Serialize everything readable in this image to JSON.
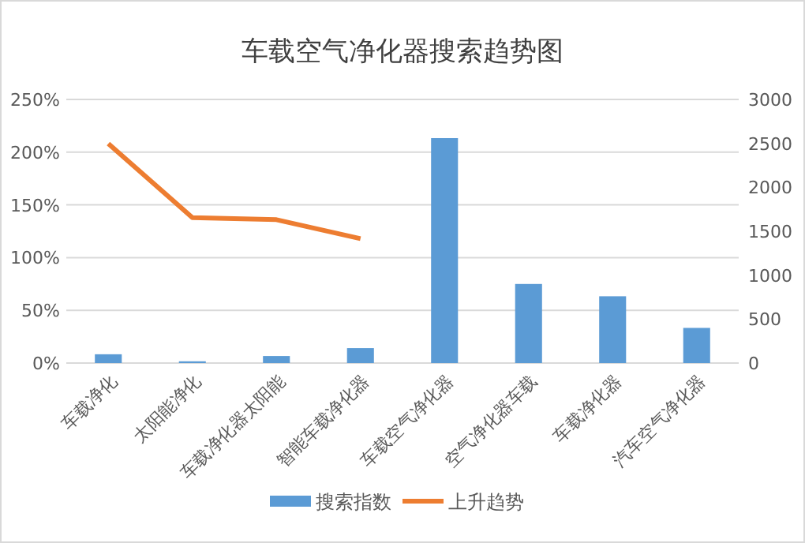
{
  "chart_data": {
    "type": "bar",
    "title": "车载空气净化器搜索趋势图",
    "categories": [
      "车载净化",
      "太阳能净化",
      "车载净化器太阳能",
      "智能车载净化器",
      "车载空气净化器",
      "空气净化器车载",
      "车载净化器",
      "汽车空气净化器"
    ],
    "series": [
      {
        "name": "搜索指数",
        "axis": "y2",
        "color": "#5b9bd5",
        "values": [
          100,
          20,
          80,
          170,
          2560,
          900,
          760,
          400
        ]
      },
      {
        "name": "上升趋势",
        "type": "line",
        "color": "#ed7d31",
        "values": [
          208,
          138,
          136,
          118,
          null,
          null,
          null,
          null
        ]
      }
    ],
    "ylim": [
      0,
      250
    ],
    "yticks": [
      {
        "value": 0,
        "label": "0%"
      },
      {
        "value": 50,
        "label": "50%"
      },
      {
        "value": 100,
        "label": "100%"
      },
      {
        "value": 150,
        "label": "150%"
      },
      {
        "value": 200,
        "label": "200%"
      },
      {
        "value": 250,
        "label": "250%"
      }
    ],
    "y2lim": [
      0,
      3000
    ],
    "y2ticks": [
      0,
      500,
      1000,
      1500,
      2000,
      2500,
      3000
    ],
    "grid": "y",
    "legend": "bottom"
  }
}
